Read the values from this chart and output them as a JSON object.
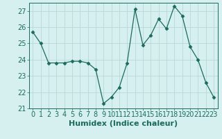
{
  "x": [
    0,
    1,
    2,
    3,
    4,
    5,
    6,
    7,
    8,
    9,
    10,
    11,
    12,
    13,
    14,
    15,
    16,
    17,
    18,
    19,
    20,
    21,
    22,
    23
  ],
  "y": [
    25.7,
    25.0,
    23.8,
    23.8,
    23.8,
    23.9,
    23.9,
    23.8,
    23.4,
    21.3,
    21.7,
    22.3,
    23.8,
    27.1,
    24.9,
    25.5,
    26.5,
    25.9,
    27.3,
    26.7,
    24.8,
    24.0,
    22.6,
    21.7
  ],
  "line_color": "#1a6b5a",
  "marker": "D",
  "marker_size": 2.5,
  "bg_color": "#d6f0ef",
  "grid_color": "#b8d8d6",
  "tick_color": "#1a6b5a",
  "xlabel": "Humidex (Indice chaleur)",
  "ylim": [
    21,
    27.5
  ],
  "yticks": [
    21,
    22,
    23,
    24,
    25,
    26,
    27
  ],
  "font_color": "#1a6b5a",
  "font_size": 7,
  "xlabel_fontsize": 8
}
